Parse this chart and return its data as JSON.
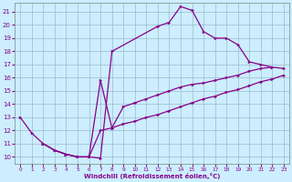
{
  "xlabel": "Windchill (Refroidissement éolien,°C)",
  "bg_color": "#cceeff",
  "line_color": "#880088",
  "grid_color": "#99bbcc",
  "xlim": [
    -0.5,
    23.5
  ],
  "ylim": [
    9.5,
    21.7
  ],
  "xticks": [
    0,
    1,
    2,
    3,
    4,
    5,
    6,
    7,
    8,
    9,
    10,
    11,
    12,
    13,
    14,
    15,
    16,
    17,
    18,
    19,
    20,
    21,
    22,
    23
  ],
  "yticks": [
    10,
    11,
    12,
    13,
    14,
    15,
    16,
    17,
    18,
    19,
    20,
    21
  ],
  "line1_x": [
    0,
    1,
    2,
    3,
    4,
    5,
    6,
    7,
    8,
    12,
    13,
    14,
    15,
    16,
    17,
    18,
    19,
    20,
    21,
    22
  ],
  "line1_y": [
    13.0,
    11.8,
    11.0,
    10.5,
    10.2,
    10.0,
    10.0,
    9.9,
    18.0,
    19.9,
    20.2,
    21.4,
    21.1,
    19.5,
    19.0,
    19.0,
    18.5,
    17.2,
    17.0,
    16.8
  ],
  "line2_x": [
    2,
    3,
    4,
    5,
    6,
    7,
    8,
    9,
    10,
    11,
    12,
    13,
    14,
    15,
    16,
    17,
    18,
    19,
    20,
    21,
    22,
    23
  ],
  "line2_y": [
    11.0,
    10.5,
    10.2,
    10.0,
    10.0,
    15.8,
    12.2,
    13.8,
    14.1,
    14.4,
    14.7,
    15.0,
    15.3,
    15.5,
    15.6,
    15.8,
    16.0,
    16.2,
    16.5,
    16.7,
    16.8,
    16.7
  ],
  "line3_x": [
    2,
    3,
    4,
    5,
    6,
    7,
    8,
    9,
    10,
    11,
    12,
    13,
    14,
    15,
    16,
    17,
    18,
    19,
    20,
    21,
    22,
    23
  ],
  "line3_y": [
    11.0,
    10.5,
    10.2,
    10.0,
    10.0,
    12.0,
    12.2,
    12.5,
    12.7,
    13.0,
    13.2,
    13.5,
    13.8,
    14.1,
    14.4,
    14.6,
    14.9,
    15.1,
    15.4,
    15.7,
    15.9,
    16.2
  ]
}
